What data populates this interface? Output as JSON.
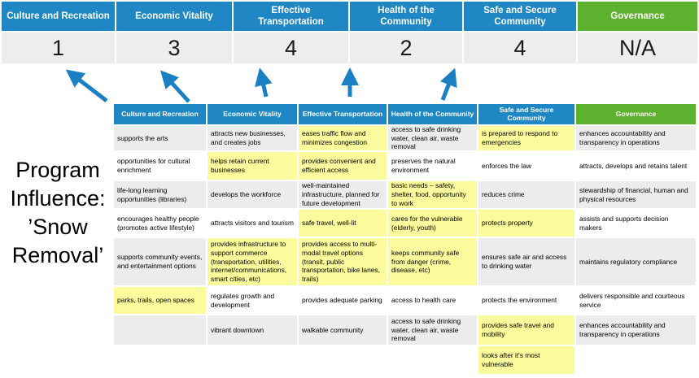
{
  "title": {
    "lines": [
      "Program",
      "Influence:",
      "’Snow",
      "Removal’"
    ]
  },
  "colors": {
    "blue": "#1E87C4",
    "green": "#5CB22E",
    "yellow": "#FBFB9D",
    "band_gray": "#EDECEC",
    "band_white": "#FFFFFF",
    "score_bg": "#EDEDED",
    "arrow": "#1B7FC4",
    "header_text": "#FFFFFF"
  },
  "summary": {
    "columns": [
      {
        "label": "Culture and Recreation",
        "score": "1",
        "accent": "blue"
      },
      {
        "label": "Economic Vitality",
        "score": "3",
        "accent": "blue"
      },
      {
        "label": "Effective Transportation",
        "score": "4",
        "accent": "blue"
      },
      {
        "label": "Health of the Community",
        "score": "2",
        "accent": "blue"
      },
      {
        "label": "Safe and Secure Community",
        "score": "4",
        "accent": "blue"
      },
      {
        "label": "Governance",
        "score": "N/A",
        "accent": "green"
      }
    ]
  },
  "matrix": {
    "headers": [
      {
        "label": "Culture and Recreation",
        "accent": "blue"
      },
      {
        "label": "Economic Vitality",
        "accent": "blue"
      },
      {
        "label": "Effective Transportation",
        "accent": "blue"
      },
      {
        "label": "Health of the Community",
        "accent": "blue"
      },
      {
        "label": "Safe and Secure Community",
        "accent": "blue"
      },
      {
        "label": "Governance",
        "accent": "green"
      }
    ],
    "rows": [
      [
        {
          "text": "supports the arts",
          "highlight": false
        },
        {
          "text": "attracts new businesses, and creates jobs",
          "highlight": false
        },
        {
          "text": "eases traffic flow and minimizes congestion",
          "highlight": true
        },
        {
          "text": "access to safe drinking water, clean air, waste removal",
          "highlight": false
        },
        {
          "text": "is prepared to respond to emergencies",
          "highlight": true
        },
        {
          "text": "enhances accountability and transparency in operations",
          "highlight": false
        }
      ],
      [
        {
          "text": "opportunities for cultural enrichment",
          "highlight": false
        },
        {
          "text": "helps retain current businesses",
          "highlight": true
        },
        {
          "text": "provides convenient and efficient access",
          "highlight": true
        },
        {
          "text": "preserves the natural environment",
          "highlight": false
        },
        {
          "text": "enforces the law",
          "highlight": false
        },
        {
          "text": "attracts, develops and retains talent",
          "highlight": false
        }
      ],
      [
        {
          "text": "life-long learning opportunities (libraries)",
          "highlight": false
        },
        {
          "text": "develops the workforce",
          "highlight": false
        },
        {
          "text": "well-maintained infrastructure, planned for future development",
          "highlight": false
        },
        {
          "text": "basic needs – safety, shelter, food, opportunity to work",
          "highlight": true
        },
        {
          "text": "reduces crime",
          "highlight": false
        },
        {
          "text": "stewardship of financial, human and physical resources",
          "highlight": false
        }
      ],
      [
        {
          "text": "encourages healthy people (promotes active lifestyle)",
          "highlight": false
        },
        {
          "text": "attracts visitors and tourism",
          "highlight": false
        },
        {
          "text": "safe travel, well-lit",
          "highlight": true
        },
        {
          "text": "cares for the vulnerable (elderly, youth)",
          "highlight": true
        },
        {
          "text": "protects property",
          "highlight": true
        },
        {
          "text": "assists and supports decision makers",
          "highlight": false
        }
      ],
      [
        {
          "text": "supports community events, and entertainment options",
          "highlight": false
        },
        {
          "text": "provides infrastructure to support commerce (transportation, utilities, internet/communications, smart cities, etc)",
          "highlight": true
        },
        {
          "text": "provides access to multi-modal travel options (transit, public transportation, bike lanes, trails)",
          "highlight": true
        },
        {
          "text": "keeps community safe from danger (crime, disease, etc)",
          "highlight": true
        },
        {
          "text": "ensures safe air and access to drinking water",
          "highlight": false
        },
        {
          "text": "maintains regulatory compliance",
          "highlight": false
        }
      ],
      [
        {
          "text": "parks, trails, open spaces",
          "highlight": true
        },
        {
          "text": "regulates growth and development",
          "highlight": false
        },
        {
          "text": "provides adequate parking",
          "highlight": false
        },
        {
          "text": "access to health care",
          "highlight": false
        },
        {
          "text": "protects the environment",
          "highlight": false
        },
        {
          "text": "delivers responsible and courteous service",
          "highlight": false
        }
      ],
      [
        {
          "text": "",
          "highlight": false
        },
        {
          "text": "vibrant downtown",
          "highlight": false
        },
        {
          "text": "walkable community",
          "highlight": false
        },
        {
          "text": "access to safe drinking water, clean air, waste removal",
          "highlight": false
        },
        {
          "text": "provides safe travel and mobility",
          "highlight": true
        },
        {
          "text": "enhances accountability and transparency in operations",
          "highlight": false
        }
      ],
      [
        {
          "text": "",
          "highlight": false
        },
        {
          "text": "",
          "highlight": false
        },
        {
          "text": "",
          "highlight": false
        },
        {
          "text": "",
          "highlight": false
        },
        {
          "text": "looks after it's most vulnerable",
          "highlight": true
        },
        {
          "text": "",
          "highlight": false
        }
      ]
    ]
  }
}
